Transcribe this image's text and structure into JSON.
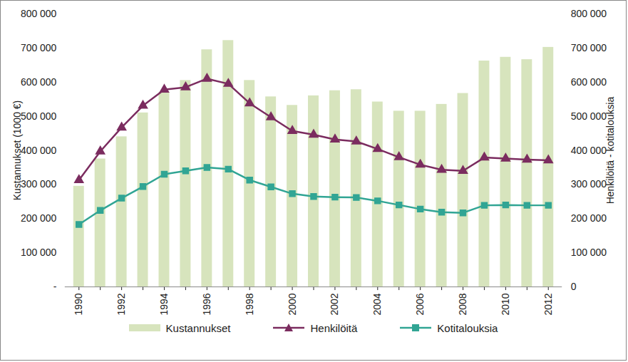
{
  "chart_data": {
    "type": "bar",
    "categories": [
      "1990",
      null,
      "1992",
      null,
      "1994",
      null,
      "1996",
      null,
      "1998",
      null,
      "2000",
      null,
      "2002",
      null,
      "2004",
      null,
      "2006",
      null,
      "2008",
      null,
      "2010",
      null,
      "2012"
    ],
    "ylabel": "Kustannukset (1000 €)",
    "y2label": "Henkilöitä - kotitalouksia",
    "ylim": [
      0,
      800000
    ],
    "yticks": [
      {
        "value": 0,
        "label": "-"
      },
      {
        "value": 100000,
        "label": "100 000"
      },
      {
        "value": 200000,
        "label": "200 000"
      },
      {
        "value": 300000,
        "label": "300 000"
      },
      {
        "value": 400000,
        "label": "400 000"
      },
      {
        "value": 500000,
        "label": "500 000"
      },
      {
        "value": 600000,
        "label": "600 000"
      },
      {
        "value": 700000,
        "label": "700 000"
      },
      {
        "value": 800000,
        "label": "800 000"
      }
    ],
    "y2lim": [
      0,
      800000
    ],
    "y2ticks": [
      0,
      {
        "value": 100000,
        "label": "100 000"
      },
      {
        "value": 200000,
        "label": "200 000"
      },
      {
        "value": 300000,
        "label": "300 000"
      },
      {
        "value": 400000,
        "label": "400 000"
      },
      {
        "value": 500000,
        "label": "500 000"
      },
      {
        "value": 600000,
        "label": "600 000"
      },
      {
        "value": 700000,
        "label": "700 000"
      },
      {
        "value": 800000,
        "label": "800 000"
      }
    ],
    "grid": false,
    "legend": "bottom",
    "series": [
      {
        "name": "Kustannukset",
        "type": "bar",
        "color": "#d7e4bd",
        "values": [
          295000,
          375000,
          440000,
          510000,
          570000,
          605000,
          695000,
          722000,
          605000,
          557000,
          532000,
          560000,
          575000,
          578000,
          542000,
          515000,
          515000,
          535000,
          567000,
          662000,
          673000,
          666000,
          702000
        ]
      },
      {
        "name": "Henkilöitä",
        "type": "line",
        "axis": "y2",
        "color": "#7b2c5f",
        "marker": "triangle",
        "values": [
          313000,
          397000,
          467000,
          531000,
          578000,
          585000,
          610000,
          595000,
          538000,
          497000,
          457000,
          446000,
          432000,
          426000,
          404000,
          380000,
          358000,
          343000,
          340000,
          379000,
          376000,
          373000,
          371000
        ]
      },
      {
        "name": "Kotitalouksia",
        "type": "line",
        "axis": "y2",
        "color": "#31a594",
        "marker": "square",
        "values": [
          183000,
          224000,
          260000,
          294000,
          330000,
          340000,
          350000,
          345000,
          313000,
          293000,
          273000,
          265000,
          263000,
          262000,
          252000,
          240000,
          228000,
          219000,
          217000,
          239000,
          240000,
          239000,
          239000
        ]
      }
    ]
  }
}
